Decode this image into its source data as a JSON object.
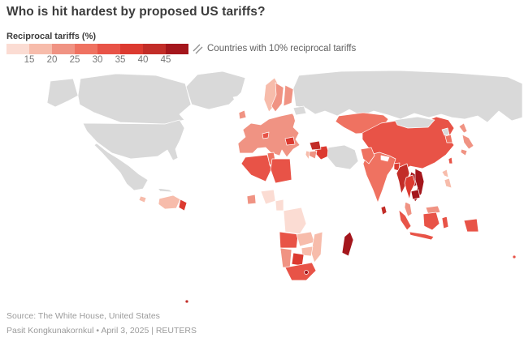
{
  "header": {
    "title": "Who is hit hardest by proposed US tariffs?"
  },
  "legend": {
    "label": "Reciprocal tariffs (%)",
    "ticks": [
      "15",
      "20",
      "25",
      "30",
      "35",
      "40",
      "45"
    ],
    "hatch_note": "Countries with 10% reciprocal tariffs"
  },
  "footer": {
    "source": "Source: The White House, United States",
    "byline": "Pasit Kongkunakornkul • April 3, 2025 | REUTERS"
  },
  "chart_data": {
    "type": "choropleth",
    "title": "Who is hit hardest by proposed US tariffs?",
    "unit": "Reciprocal tariffs (%)",
    "legend_position": "top-left",
    "color_scale": {
      "thresholds": [
        15,
        20,
        25,
        30,
        35,
        40,
        45
      ],
      "colors": [
        "#fbdcd3",
        "#f7bcab",
        "#f09383",
        "#ef7261",
        "#e85347",
        "#dc3a30",
        "#c22d28",
        "#a4161c"
      ]
    },
    "hatch": {
      "value": 10,
      "stripe_color": "#edcabe",
      "label": "Countries with 10% reciprocal tariffs"
    },
    "no_data_color": "#d9d9d9",
    "countries": {
      "greenland": "none",
      "canada": "none",
      "united_states": "none",
      "alaska": "none",
      "mexico": "none",
      "cuba": "none",
      "russia": "none",
      "belarus": "none",
      "iran": "none",
      "mongolia": "none",
      "north_korea": "none",
      "caribbean": 10,
      "central_america": 10,
      "nicaragua": 18,
      "south_america": 10,
      "venezuela": 15,
      "guyana": 38,
      "falkland_islands": 41,
      "iceland": 10,
      "svalbard": 10,
      "united_kingdom": 10,
      "ireland": 20,
      "european_union": 20,
      "norway": 15,
      "sweden": 20,
      "finland": 20,
      "switzerland": 31,
      "serbia": 37,
      "ukraine": 10,
      "turkey": 10,
      "caucasus": 10,
      "africa_10pct_region": 10,
      "algeria": 30,
      "tunisia": 28,
      "libya": 31,
      "nigeria": 14,
      "cote_divoire": 21,
      "cameroon": 11,
      "dr_congo": 11,
      "angola": 32,
      "zambia": 17,
      "mozambique": 16,
      "zimbabwe": 18,
      "botswana": 37,
      "namibia": 21,
      "south_africa": 30,
      "lesotho": 50,
      "madagascar": 47,
      "saudi_arabia": 10,
      "iraq": 39,
      "syria": 41,
      "jordan": 20,
      "israel": 17,
      "kazakhstan": 27,
      "central_asia": 10,
      "afghanistan": 10,
      "pakistan": 29,
      "india": 26,
      "nepal": 10,
      "bangladesh": 37,
      "sri_lanka": 44,
      "china": 34,
      "south_korea": 25,
      "japan": 24,
      "taiwan": 32,
      "myanmar": 44,
      "thailand": 36,
      "laos": 48,
      "vietnam": 46,
      "cambodia": 49,
      "malaysia": 24,
      "indonesia": 32,
      "papua_new_guinea": 10,
      "philippines": 17,
      "australia": 10,
      "new_zealand": 10,
      "fiji": 32
    }
  }
}
